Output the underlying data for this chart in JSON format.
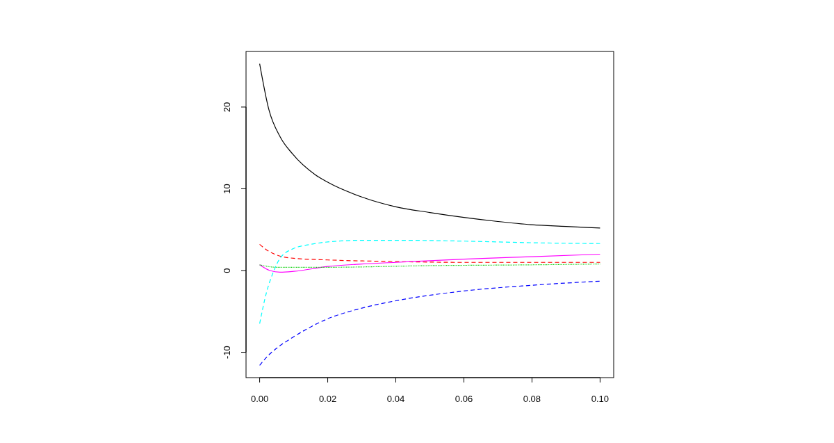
{
  "chart_data": {
    "type": "line",
    "xlim": [
      -0.004,
      0.104
    ],
    "ylim": [
      -13.1,
      26.8
    ],
    "xticks": [
      {
        "value": 0,
        "label": "0.00"
      },
      {
        "value": 0.02,
        "label": "0.02"
      },
      {
        "value": 0.04,
        "label": "0.04"
      },
      {
        "value": 0.06,
        "label": "0.06"
      },
      {
        "value": 0.08,
        "label": "0.08"
      },
      {
        "value": 0.1,
        "label": "0.10"
      }
    ],
    "yticks": [
      -10,
      0,
      10,
      20
    ],
    "grid": false,
    "series": [
      {
        "color": "#000000",
        "line_style": "solid",
        "x": [
          0,
          0.0027,
          0.0061,
          0.0096,
          0.0164,
          0.02,
          0.03,
          0.04,
          0.05,
          0.06,
          0.07,
          0.08,
          0.09,
          0.1
        ],
        "values": [
          25.3,
          19.7,
          16.3,
          14.3,
          11.7,
          10.8,
          9.0,
          7.8,
          7.1,
          6.5,
          6.0,
          5.6,
          5.4,
          5.2
        ]
      },
      {
        "color": "#ff0000",
        "line_style": "dashed",
        "x": [
          0,
          0.0025,
          0.005,
          0.01,
          0.02,
          0.04,
          0.06,
          0.08,
          0.1
        ],
        "values": [
          3.2,
          2.4,
          1.9,
          1.5,
          1.3,
          1.1,
          1.0,
          1.0,
          1.0
        ]
      },
      {
        "color": "#0000ff",
        "line_style": "dashed",
        "x": [
          0,
          0.0025,
          0.005,
          0.01,
          0.02,
          0.03,
          0.04,
          0.06,
          0.08,
          0.1
        ],
        "values": [
          -11.6,
          -10.4,
          -9.5,
          -8.1,
          -5.9,
          -4.6,
          -3.7,
          -2.5,
          -1.8,
          -1.3
        ]
      },
      {
        "color": "#00ffff",
        "line_style": "dashed",
        "x": [
          0,
          0.002,
          0.004,
          0.006,
          0.01,
          0.015,
          0.02,
          0.03,
          0.04,
          0.06,
          0.08,
          0.1
        ],
        "values": [
          -6.5,
          -2.7,
          -0.2,
          1.5,
          2.7,
          3.2,
          3.5,
          3.7,
          3.7,
          3.6,
          3.4,
          3.3
        ]
      },
      {
        "color": "#ff00ff",
        "line_style": "solid",
        "x": [
          0,
          0.003,
          0.006,
          0.01,
          0.02,
          0.03,
          0.04,
          0.06,
          0.08,
          0.1
        ],
        "values": [
          0.7,
          0.0,
          -0.2,
          -0.1,
          0.5,
          0.8,
          1.0,
          1.4,
          1.7,
          2.0
        ]
      },
      {
        "color": "#00cd00",
        "line_style": "dotted",
        "x": [
          0,
          0.005,
          0.02,
          0.05,
          0.08,
          0.1
        ],
        "values": [
          0.7,
          0.4,
          0.4,
          0.6,
          0.7,
          0.8
        ]
      }
    ]
  }
}
